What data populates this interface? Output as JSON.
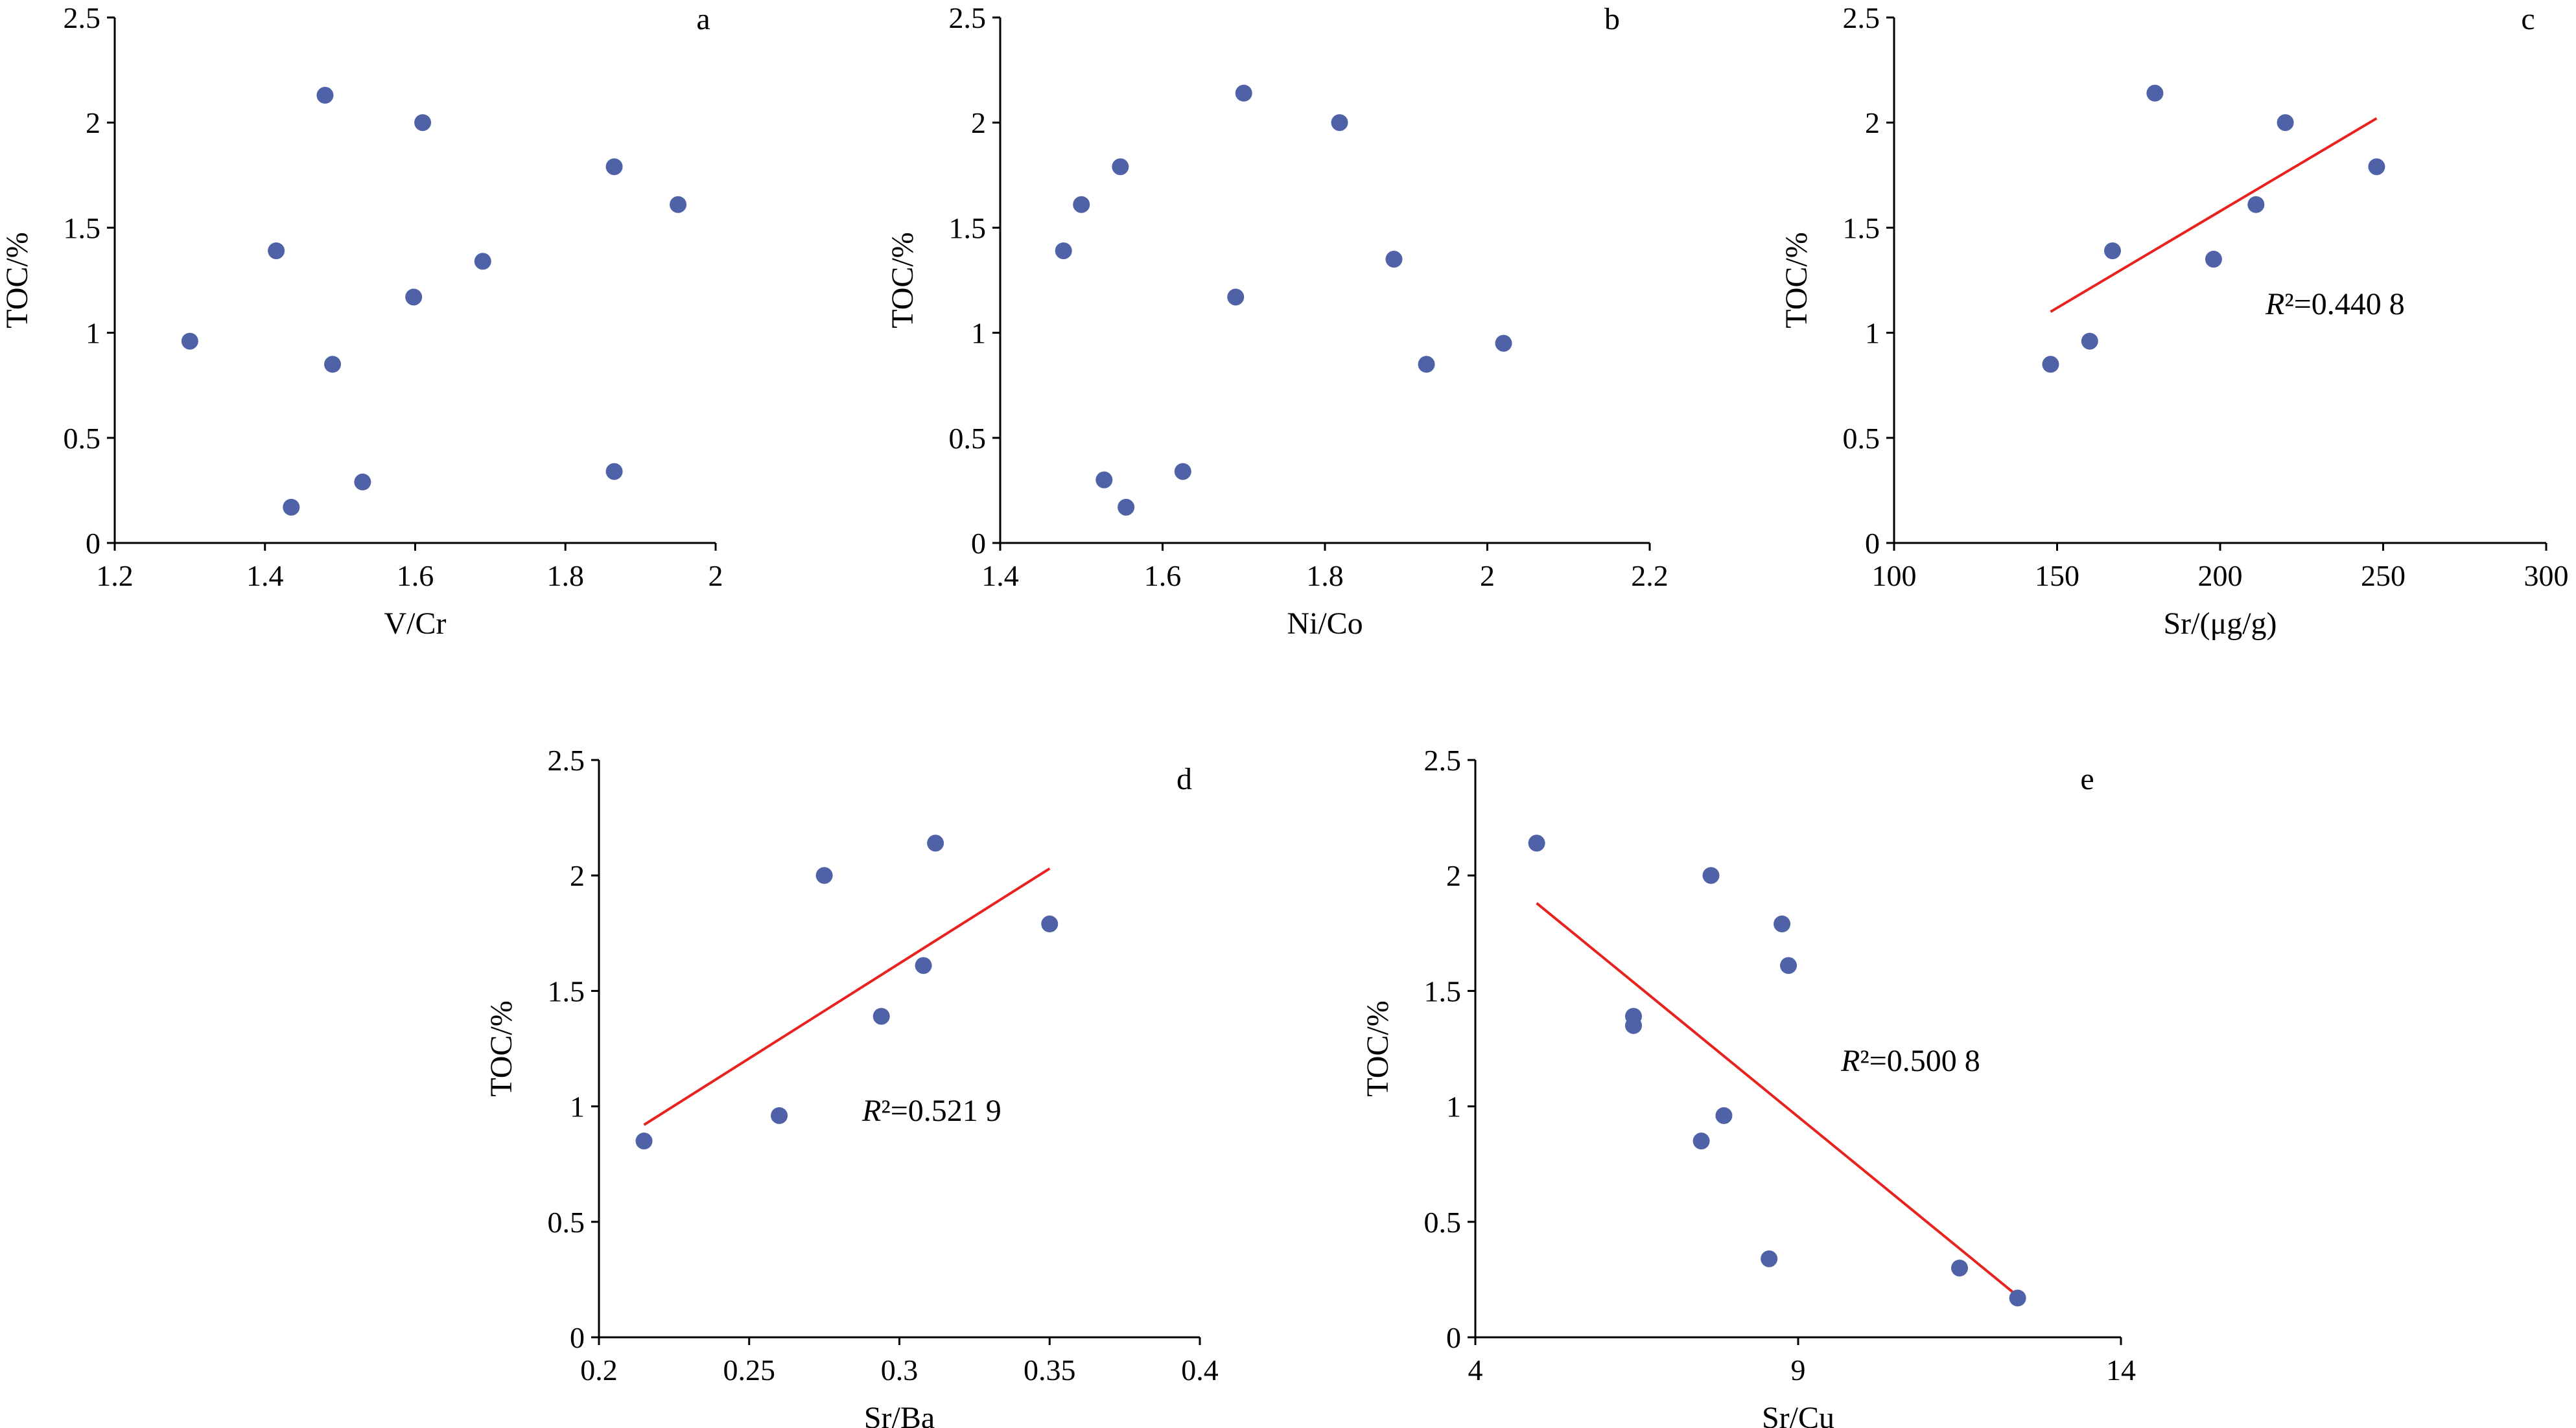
{
  "colors": {
    "point": "#4f62a8",
    "trend": "#e8231f",
    "axis": "#000000"
  },
  "chart_data": [
    {
      "panel": "a",
      "type": "scatter",
      "xlabel": "V/Cr",
      "ylabel": "TOC/%",
      "xlim": [
        1.2,
        2
      ],
      "ylim": [
        0,
        2.5
      ],
      "xticks": [
        1.2,
        1.4,
        1.6,
        1.8,
        2
      ],
      "xtick_labels": [
        "1.2",
        "1.4",
        "1.6",
        "1.8",
        "2"
      ],
      "yticks": [
        0,
        0.5,
        1,
        1.5,
        2,
        2.5
      ],
      "ytick_labels": [
        "0",
        "0.5",
        "1",
        "1.5",
        "2",
        "2.5"
      ],
      "x": [
        1.3,
        1.415,
        1.48,
        1.49,
        1.435,
        1.53,
        1.598,
        1.61,
        1.69,
        1.865,
        1.865,
        1.95
      ],
      "y": [
        0.96,
        1.39,
        2.13,
        0.85,
        0.17,
        0.29,
        1.17,
        2.0,
        1.34,
        1.79,
        0.34,
        1.61
      ],
      "r2": "",
      "trendline": null
    },
    {
      "panel": "b",
      "type": "scatter",
      "xlabel": "Ni/Co",
      "ylabel": "TOC/%",
      "xlim": [
        1.4,
        2.2
      ],
      "ylim": [
        0,
        2.5
      ],
      "xticks": [
        1.4,
        1.6,
        1.8,
        2,
        2.2
      ],
      "xtick_labels": [
        "1.4",
        "1.6",
        "1.8",
        "2",
        "2.2"
      ],
      "yticks": [
        0,
        0.5,
        1,
        1.5,
        2,
        2.5
      ],
      "ytick_labels": [
        "0",
        "0.5",
        "1",
        "1.5",
        "2",
        "2.5"
      ],
      "x": [
        1.478,
        1.5,
        1.548,
        1.528,
        1.555,
        1.625,
        1.69,
        1.7,
        1.818,
        1.885,
        1.925,
        2.02
      ],
      "y": [
        1.39,
        1.61,
        1.79,
        0.3,
        0.17,
        0.34,
        1.17,
        2.14,
        2.0,
        1.35,
        0.85,
        0.95
      ],
      "r2": "",
      "trendline": null
    },
    {
      "panel": "c",
      "type": "scatter",
      "xlabel": "Sr/(μg/g)",
      "ylabel": "TOC/%",
      "xlim": [
        100,
        300
      ],
      "ylim": [
        0,
        2.5
      ],
      "xticks": [
        100,
        150,
        200,
        250,
        300
      ],
      "xtick_labels": [
        "100",
        "150",
        "200",
        "250",
        "300"
      ],
      "yticks": [
        0,
        0.5,
        1,
        1.5,
        2,
        2.5
      ],
      "ytick_labels": [
        "0",
        "0.5",
        "1",
        "1.5",
        "2",
        "2.5"
      ],
      "x": [
        148,
        160,
        167,
        180,
        198,
        211,
        220,
        248
      ],
      "y": [
        0.85,
        0.96,
        1.39,
        2.14,
        1.35,
        1.61,
        2.0,
        1.79
      ],
      "r2": "=0.440 8",
      "trendline": {
        "x": [
          148,
          248
        ],
        "y": [
          1.1,
          2.02
        ]
      }
    },
    {
      "panel": "d",
      "type": "scatter",
      "xlabel": "Sr/Ba",
      "ylabel": "TOC/%",
      "xlim": [
        0.2,
        0.4
      ],
      "ylim": [
        0,
        2.5
      ],
      "xticks": [
        0.2,
        0.25,
        0.3,
        0.35,
        0.4
      ],
      "xtick_labels": [
        "0.2",
        "0.25",
        "0.3",
        "0.35",
        "0.4"
      ],
      "yticks": [
        0,
        0.5,
        1,
        1.5,
        2,
        2.5
      ],
      "ytick_labels": [
        "0",
        "0.5",
        "1",
        "1.5",
        "2",
        "2.5"
      ],
      "x": [
        0.215,
        0.26,
        0.275,
        0.294,
        0.308,
        0.312,
        0.35
      ],
      "y": [
        0.85,
        0.96,
        2.0,
        1.39,
        1.61,
        2.14,
        1.79
      ],
      "r2": "=0.521 9",
      "trendline": {
        "x": [
          0.215,
          0.35
        ],
        "y": [
          0.92,
          2.03
        ]
      }
    },
    {
      "panel": "e",
      "type": "scatter",
      "xlabel": "Sr/Cu",
      "ylabel": "TOC/%",
      "xlim": [
        4,
        14
      ],
      "ylim": [
        0,
        2.5
      ],
      "xticks": [
        4,
        9,
        14
      ],
      "xtick_labels": [
        "4",
        "9",
        "14"
      ],
      "yticks": [
        0,
        0.5,
        1,
        1.5,
        2,
        2.5
      ],
      "ytick_labels": [
        "0",
        "0.5",
        "1",
        "1.5",
        "2",
        "2.5"
      ],
      "x": [
        4.95,
        6.45,
        6.45,
        7.5,
        7.65,
        7.85,
        8.55,
        8.75,
        8.85,
        11.5,
        12.4
      ],
      "y": [
        2.14,
        1.39,
        1.35,
        0.85,
        2.0,
        0.96,
        0.34,
        1.79,
        1.61,
        0.3,
        0.17
      ],
      "r2": "=0.500 8",
      "trendline": {
        "x": [
          4.95,
          12.35
        ],
        "y": [
          1.88,
          0.19
        ]
      }
    }
  ]
}
